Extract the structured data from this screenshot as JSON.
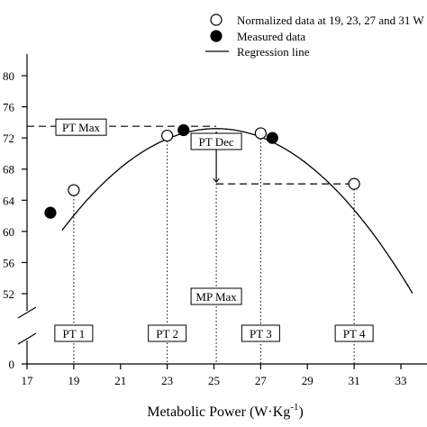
{
  "chart_data": {
    "type": "scatter",
    "xlabel": "Metabolic Power (W·Kg",
    "xlabel_sup": "-1",
    "xlabel_close": ")",
    "ylabel": "",
    "xlim": [
      17,
      33.5
    ],
    "ylim_upper": [
      52,
      80
    ],
    "ylim_lower_visible": 0,
    "x_ticks": [
      17,
      19,
      21,
      23,
      25,
      27,
      29,
      31,
      33
    ],
    "y_ticks": [
      0,
      52,
      56,
      60,
      64,
      68,
      72,
      76,
      80
    ],
    "axis_break": true,
    "legend": {
      "placement": "top-right",
      "entries": [
        {
          "label": "Normalized data at 19, 23, 27 and 31 W",
          "marker": "open-circle"
        },
        {
          "label": "Measured data",
          "marker": "filled-circle"
        },
        {
          "label": "Regression line",
          "marker": "line"
        }
      ]
    },
    "series": [
      {
        "name": "Normalized data at 19, 23, 27 and 31 W",
        "marker": "open-circle",
        "points": [
          {
            "x": 19,
            "y": 65.3
          },
          {
            "x": 23,
            "y": 72.3
          },
          {
            "x": 27,
            "y": 72.6
          },
          {
            "x": 31,
            "y": 66.1
          }
        ]
      },
      {
        "name": "Measured data",
        "marker": "filled-circle",
        "points": [
          {
            "x": 18,
            "y": 62.4
          },
          {
            "x": 23.7,
            "y": 73.0
          },
          {
            "x": 27.5,
            "y": 72.0
          }
        ]
      },
      {
        "name": "Regression line",
        "marker": "line",
        "quadratic": {
          "x_vertex": 25.1,
          "y_vertex": 73.2,
          "a": -0.3
        },
        "x_range": [
          18.5,
          33.5
        ]
      }
    ],
    "annotations": {
      "pt_max": {
        "label": "PT Max",
        "y": 73.5
      },
      "pt_dec": {
        "label": "PT Dec",
        "x": 25.1,
        "y_top": 73.2,
        "y_bottom": 66.1
      },
      "mp_max": {
        "label": "MP Max",
        "x": 25.1
      },
      "pt_markers": [
        {
          "label": "PT 1",
          "x": 19
        },
        {
          "label": "PT 2",
          "x": 23
        },
        {
          "label": "PT 3",
          "x": 27
        },
        {
          "label": "PT 4",
          "x": 31
        }
      ]
    },
    "grid": false
  }
}
